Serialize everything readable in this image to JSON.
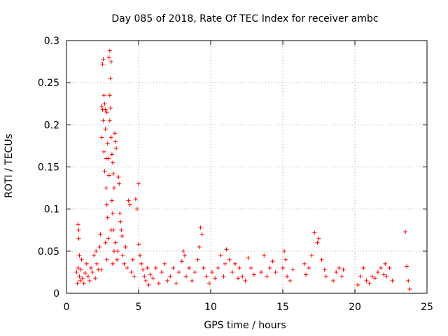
{
  "chart_data": {
    "type": "scatter",
    "title": "Day 085 of 2018, Rate Of TEC Index for receiver ambc",
    "xlabel": "GPS time / hours",
    "ylabel": "ROTI / TECUs",
    "xlim": [
      0,
      25
    ],
    "ylim": [
      0,
      0.3
    ],
    "x_ticks": [
      "0",
      "5",
      "10",
      "15",
      "20",
      "25"
    ],
    "y_ticks": [
      "0",
      "0.05",
      "0.1",
      "0.15",
      "0.2",
      "0.25",
      "0.3"
    ],
    "grid": true,
    "marker": "+",
    "color": "#ff0000",
    "series": [
      {
        "points": [
          [
            0.7,
            0.025
          ],
          [
            0.75,
            0.012
          ],
          [
            0.8,
            0.03
          ],
          [
            0.8,
            0.082
          ],
          [
            0.85,
            0.075
          ],
          [
            0.85,
            0.065
          ],
          [
            0.9,
            0.045
          ],
          [
            0.9,
            0.02
          ],
          [
            0.95,
            0.015
          ],
          [
            1.0,
            0.028
          ],
          [
            1.05,
            0.04
          ],
          [
            1.1,
            0.018
          ],
          [
            1.2,
            0.012
          ],
          [
            1.3,
            0.024
          ],
          [
            1.4,
            0.035
          ],
          [
            1.5,
            0.02
          ],
          [
            1.6,
            0.015
          ],
          [
            1.7,
            0.03
          ],
          [
            1.8,
            0.025
          ],
          [
            1.9,
            0.045
          ],
          [
            2.0,
            0.018
          ],
          [
            2.05,
            0.05
          ],
          [
            2.1,
            0.035
          ],
          [
            2.2,
            0.028
          ],
          [
            2.3,
            0.055
          ],
          [
            2.35,
            0.07
          ],
          [
            2.4,
            0.028
          ],
          [
            2.45,
            0.222
          ],
          [
            2.45,
            0.185
          ],
          [
            2.5,
            0.218
          ],
          [
            2.5,
            0.272
          ],
          [
            2.55,
            0.278
          ],
          [
            2.55,
            0.205
          ],
          [
            2.6,
            0.235
          ],
          [
            2.6,
            0.168
          ],
          [
            2.65,
            0.225
          ],
          [
            2.65,
            0.145
          ],
          [
            2.7,
            0.218
          ],
          [
            2.7,
            0.195
          ],
          [
            2.7,
            0.06
          ],
          [
            2.75,
            0.16
          ],
          [
            2.75,
            0.125
          ],
          [
            2.8,
            0.215
          ],
          [
            2.8,
            0.105
          ],
          [
            2.8,
            0.04
          ],
          [
            2.85,
            0.178
          ],
          [
            2.85,
            0.09
          ],
          [
            2.9,
            0.16
          ],
          [
            2.9,
            0.065
          ],
          [
            2.95,
            0.14
          ],
          [
            2.95,
            0.28
          ],
          [
            3.0,
            0.288
          ],
          [
            3.0,
            0.235
          ],
          [
            3.0,
            0.205
          ],
          [
            3.05,
            0.22
          ],
          [
            3.05,
            0.255
          ],
          [
            3.1,
            0.275
          ],
          [
            3.1,
            0.185
          ],
          [
            3.1,
            0.075
          ],
          [
            3.15,
            0.165
          ],
          [
            3.15,
            0.11
          ],
          [
            3.2,
            0.155
          ],
          [
            3.2,
            0.095
          ],
          [
            3.2,
            0.035
          ],
          [
            3.25,
            0.142
          ],
          [
            3.25,
            0.075
          ],
          [
            3.3,
            0.125
          ],
          [
            3.3,
            0.05
          ],
          [
            3.35,
            0.19
          ],
          [
            3.4,
            0.18
          ],
          [
            3.4,
            0.06
          ],
          [
            3.45,
            0.172
          ],
          [
            3.5,
            0.04
          ],
          [
            3.55,
            0.05
          ],
          [
            3.6,
            0.138
          ],
          [
            3.65,
            0.13
          ],
          [
            3.7,
            0.095
          ],
          [
            3.75,
            0.085
          ],
          [
            3.8,
            0.075
          ],
          [
            3.85,
            0.068
          ],
          [
            3.9,
            0.045
          ],
          [
            4.0,
            0.035
          ],
          [
            4.1,
            0.055
          ],
          [
            4.2,
            0.03
          ],
          [
            4.3,
            0.11
          ],
          [
            4.4,
            0.105
          ],
          [
            4.5,
            0.025
          ],
          [
            4.6,
            0.04
          ],
          [
            4.7,
            0.02
          ],
          [
            4.8,
            0.112
          ],
          [
            4.9,
            0.1
          ],
          [
            5.0,
            0.13
          ],
          [
            5.0,
            0.058
          ],
          [
            5.1,
            0.045
          ],
          [
            5.2,
            0.035
          ],
          [
            5.3,
            0.028
          ],
          [
            5.4,
            0.02
          ],
          [
            5.5,
            0.015
          ],
          [
            5.6,
            0.03
          ],
          [
            5.7,
            0.01
          ],
          [
            5.8,
            0.022
          ],
          [
            6.0,
            0.018
          ],
          [
            6.2,
            0.03
          ],
          [
            6.4,
            0.012
          ],
          [
            6.6,
            0.025
          ],
          [
            6.8,
            0.035
          ],
          [
            7.0,
            0.015
          ],
          [
            7.2,
            0.02
          ],
          [
            7.4,
            0.03
          ],
          [
            7.6,
            0.012
          ],
          [
            7.8,
            0.025
          ],
          [
            8.0,
            0.038
          ],
          [
            8.1,
            0.05
          ],
          [
            8.2,
            0.045
          ],
          [
            8.3,
            0.02
          ],
          [
            8.5,
            0.03
          ],
          [
            8.7,
            0.015
          ],
          [
            8.9,
            0.025
          ],
          [
            9.1,
            0.04
          ],
          [
            9.2,
            0.055
          ],
          [
            9.3,
            0.078
          ],
          [
            9.4,
            0.07
          ],
          [
            9.5,
            0.03
          ],
          [
            9.7,
            0.02
          ],
          [
            9.9,
            0.012
          ],
          [
            10.1,
            0.025
          ],
          [
            10.3,
            0.018
          ],
          [
            10.5,
            0.03
          ],
          [
            10.7,
            0.045
          ],
          [
            10.9,
            0.02
          ],
          [
            11.0,
            0.035
          ],
          [
            11.1,
            0.052
          ],
          [
            11.3,
            0.04
          ],
          [
            11.5,
            0.025
          ],
          [
            11.7,
            0.035
          ],
          [
            11.9,
            0.018
          ],
          [
            12.0,
            0.03
          ],
          [
            12.2,
            0.02
          ],
          [
            12.4,
            0.015
          ],
          [
            12.6,
            0.042
          ],
          [
            12.8,
            0.03
          ],
          [
            13.0,
            0.022
          ],
          [
            13.5,
            0.025
          ],
          [
            13.7,
            0.045
          ],
          [
            13.9,
            0.02
          ],
          [
            14.1,
            0.03
          ],
          [
            14.3,
            0.038
          ],
          [
            14.5,
            0.025
          ],
          [
            15.0,
            0.03
          ],
          [
            15.1,
            0.05
          ],
          [
            15.2,
            0.04
          ],
          [
            15.3,
            0.02
          ],
          [
            15.5,
            0.015
          ],
          [
            15.7,
            0.028
          ],
          [
            16.5,
            0.035
          ],
          [
            16.6,
            0.022
          ],
          [
            16.8,
            0.03
          ],
          [
            17.0,
            0.045
          ],
          [
            17.2,
            0.072
          ],
          [
            17.4,
            0.06
          ],
          [
            17.5,
            0.065
          ],
          [
            17.7,
            0.04
          ],
          [
            17.9,
            0.028
          ],
          [
            18.0,
            0.02
          ],
          [
            18.5,
            0.015
          ],
          [
            18.7,
            0.025
          ],
          [
            18.9,
            0.03
          ],
          [
            19.1,
            0.02
          ],
          [
            19.2,
            0.028
          ],
          [
            20.2,
            0.01
          ],
          [
            20.4,
            0.02
          ],
          [
            20.6,
            0.03
          ],
          [
            20.8,
            0.015
          ],
          [
            21.0,
            0.012
          ],
          [
            21.2,
            0.02
          ],
          [
            21.4,
            0.018
          ],
          [
            21.6,
            0.025
          ],
          [
            21.8,
            0.03
          ],
          [
            22.0,
            0.022
          ],
          [
            22.1,
            0.035
          ],
          [
            22.2,
            0.02
          ],
          [
            22.4,
            0.03
          ],
          [
            22.6,
            0.015
          ],
          [
            23.5,
            0.073
          ],
          [
            23.6,
            0.032
          ],
          [
            23.7,
            0.015
          ],
          [
            23.8,
            0.005
          ]
        ]
      }
    ]
  }
}
